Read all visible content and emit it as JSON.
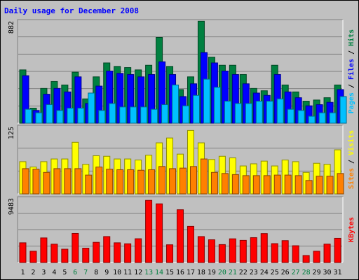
{
  "chart_data": {
    "type": "bar",
    "title": "Daily usage for December 2008",
    "categories": [
      "1",
      "2",
      "3",
      "4",
      "5",
      "6",
      "7",
      "8",
      "9",
      "10",
      "11",
      "12",
      "13",
      "14",
      "15",
      "16",
      "17",
      "18",
      "19",
      "20",
      "21",
      "22",
      "23",
      "24",
      "25",
      "26",
      "27",
      "28",
      "29",
      "30",
      "31"
    ],
    "weekend_days": [
      "6",
      "7",
      "13",
      "14",
      "20",
      "21",
      "27",
      "28"
    ],
    "panels": [
      {
        "id": "hits-files-pages",
        "ymax": 882,
        "ymax_label": "882",
        "right_label": [
          {
            "text": "Pages",
            "color": "#00c0ff"
          },
          {
            "text": " / ",
            "color": "#000000"
          },
          {
            "text": "Files",
            "color": "#0000ff"
          },
          {
            "text": " / ",
            "color": "#000000"
          },
          {
            "text": "Hits",
            "color": "#008040"
          }
        ],
        "series": [
          {
            "name": "Hits",
            "color": "#008040",
            "values": [
              460,
              130,
              300,
              360,
              330,
              440,
              210,
              400,
              520,
              490,
              480,
              460,
              500,
              740,
              490,
              290,
              400,
              880,
              570,
              500,
              500,
              420,
              300,
              280,
              500,
              330,
              270,
              190,
              200,
              220,
              330
            ]
          },
          {
            "name": "Files",
            "color": "#0000ff",
            "values": [
              410,
              110,
              250,
              300,
              270,
              400,
              170,
              320,
              450,
              430,
              420,
              400,
              420,
              530,
              420,
              230,
              340,
              610,
              520,
              450,
              420,
              340,
              260,
              240,
              420,
              270,
              220,
              150,
              160,
              180,
              290
            ]
          },
          {
            "name": "Pages",
            "color": "#00c0ff",
            "values": [
              120,
              90,
              160,
              110,
              130,
              130,
              260,
              110,
              170,
              140,
              140,
              140,
              120,
              160,
              330,
              150,
              240,
              380,
              310,
              190,
              170,
              170,
              190,
              190,
              210,
              120,
              110,
              60,
              90,
              90,
              230
            ]
          }
        ]
      },
      {
        "id": "visits-sites",
        "ymax": 125,
        "ymax_label": "125",
        "right_label": [
          {
            "text": "Sites",
            "color": "#ff8000"
          },
          {
            "text": " / ",
            "color": "#000000"
          },
          {
            "text": "Visits",
            "color": "#ffff00"
          }
        ],
        "series": [
          {
            "name": "Visits",
            "color": "#ffff00",
            "values": [
              60,
              50,
              60,
              65,
              65,
              96,
              55,
              71,
              70,
              65,
              65,
              63,
              72,
              95,
              104,
              74,
              118,
              95,
              64,
              70,
              67,
              52,
              56,
              61,
              52,
              63,
              60,
              40,
              57,
              55,
              82
            ]
          },
          {
            "name": "Sites",
            "color": "#ff8000",
            "values": [
              47,
              46,
              40,
              47,
              47,
              47,
              35,
              50,
              46,
              45,
              45,
              44,
              45,
              51,
              47,
              48,
              51,
              65,
              40,
              38,
              36,
              34,
              34,
              34,
              35,
              35,
              34,
              25,
              33,
              33,
              38
            ]
          }
        ]
      },
      {
        "id": "kbytes",
        "ymax": 9483,
        "ymax_label": "9483",
        "right_label": [
          {
            "text": "KBytes",
            "color": "#ff0000"
          }
        ],
        "series": [
          {
            "name": "KBytes",
            "color": "#ff0000",
            "values": [
              2900,
              1660,
              3620,
              2700,
              1960,
              4280,
              2110,
              2970,
              3820,
              2900,
              2760,
              3500,
              9150,
              8640,
              2610,
              7770,
              5320,
              3820,
              3350,
              2640,
              3490,
              3260,
              3660,
              4260,
              2780,
              3220,
              2470,
              1030,
              1660,
              2710,
              3560
            ]
          }
        ]
      }
    ]
  }
}
